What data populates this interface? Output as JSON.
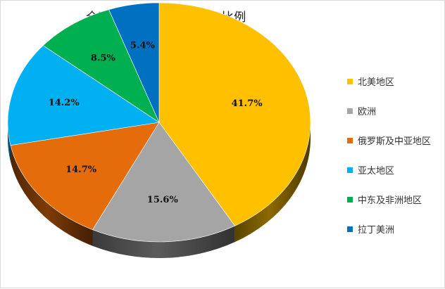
{
  "chart_data": {
    "type": "pie",
    "title": "全球各地区管道里程分布比例",
    "categories": [
      "北美地区",
      "欧洲",
      "俄罗斯及中亚地区",
      "亚太地区",
      "中东及非洲地区",
      "拉丁美洲"
    ],
    "values": [
      41.7,
      15.6,
      14.7,
      14.2,
      8.5,
      5.4
    ],
    "data_labels": [
      "41.7%",
      "15.6%",
      "14.7%",
      "14.2%",
      "8.5%",
      "5.4%"
    ],
    "colors": [
      "#FFC000",
      "#A5A5A5",
      "#E46C0A",
      "#00B0F0",
      "#00B050",
      "#0070C0"
    ],
    "start": "12 o'clock",
    "direction": "clockwise",
    "style": "3d-tilted",
    "legend": "right"
  }
}
